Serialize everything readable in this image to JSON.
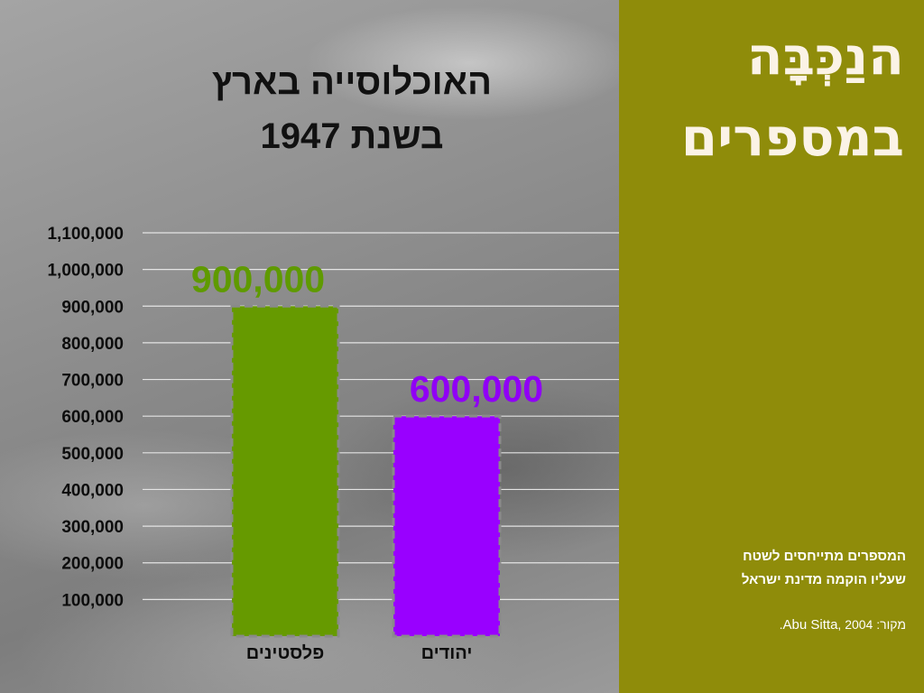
{
  "slide": {
    "panel_title_line1": "הנַכְּבָּה",
    "panel_title_line2": "במספרים",
    "note_line1": "המספרים מתייחסים לשטח",
    "note_line2": "שעליו הוקמה מדינת ישראל",
    "source_prefix": "מקור:",
    "source_name": "Abu Sitta",
    "source_year": ", 2004.",
    "chart_title_line1": "האוכלוסייה בארץ",
    "chart_title_line2": "בשנת 1947",
    "panel_color": "#8f8c0a",
    "background": "grayscale photo of a grassy field"
  },
  "chart_data": {
    "type": "bar",
    "title": "האוכלוסייה בארץ בשנת 1947",
    "xlabel": "",
    "ylabel": "",
    "categories": [
      "פלסטינים",
      "יהודים"
    ],
    "values": [
      900000,
      600000
    ],
    "data_labels": [
      "900,000",
      "600,000"
    ],
    "colors": [
      "#669a00",
      "#9900ff"
    ],
    "label_colors": [
      "#5f9a00",
      "#9000f5"
    ],
    "bar_outline": "dashed grey",
    "ylim": [
      0,
      1100000
    ],
    "yticks": [
      100000,
      200000,
      300000,
      400000,
      500000,
      600000,
      700000,
      800000,
      900000,
      1000000,
      1100000
    ],
    "ytick_labels": [
      "100,000",
      "200,000",
      "300,000",
      "400,000",
      "500,000",
      "600,000",
      "700,000",
      "800,000",
      "900,000",
      "1,000,000",
      "1,100,000"
    ],
    "grid": true,
    "legend": "none"
  }
}
